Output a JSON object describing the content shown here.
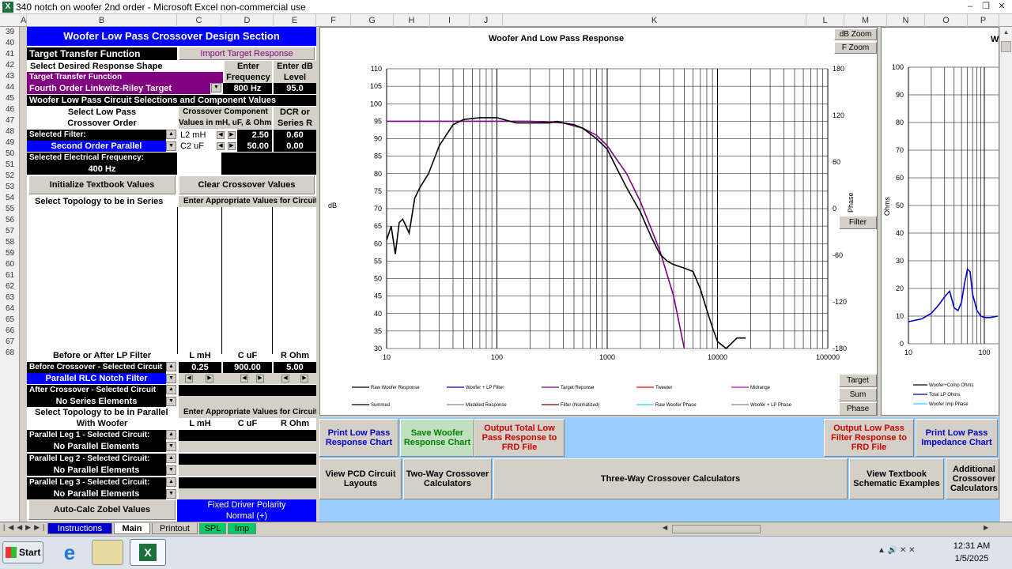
{
  "window": {
    "title": "340 notch on woofer 2nd order - Microsoft Excel non-commercial use"
  },
  "columns": [
    "A",
    "B",
    "C",
    "D",
    "E",
    "F",
    "G",
    "H",
    "I",
    "J",
    "K",
    "L",
    "M",
    "N",
    "O",
    "P"
  ],
  "rows": [
    "39",
    "40",
    "41",
    "42",
    "43",
    "44",
    "45",
    "46",
    "47",
    "48",
    "49",
    "50",
    "51",
    "52",
    "53",
    "54",
    "55",
    "56",
    "57",
    "58",
    "59",
    "60",
    "61",
    "62",
    "63",
    "64",
    "65",
    "66",
    "67",
    "68"
  ],
  "panel": {
    "section_title": "Woofer Low Pass Crossover Design Section",
    "target_transfer_label": "Target Transfer Function",
    "import_button": "Import Target Response",
    "select_shape": "Select Desired Response Shape",
    "enter_freq_hdr1": "Enter",
    "enter_freq_hdr2": "Frequency",
    "enter_db_hdr1": "Enter dB",
    "enter_db_hdr2": "Level",
    "target_tf_label": "Target Transfer Function",
    "target_tf_value": "Fourth Order Linkwitz-Riley Target",
    "freq_value": "800 Hz",
    "db_value": "95.0",
    "circuit_sel_title": "Woofer Low Pass Circuit Selections and Component Values",
    "select_lp1": "Select Low Pass",
    "select_lp2": "Crossover Order",
    "comp_hdr1": "Crossover Component",
    "comp_hdr2": "Values in mH, uF, & Ohms",
    "dcr_hdr1": "DCR or",
    "dcr_hdr2": "Series R",
    "selected_filter_label": "Selected Filter:",
    "selected_filter_value": "Second Order Parallel",
    "l2_label": "L2 mH",
    "l2_value": "2.50",
    "l2_dcr": "0.60",
    "c2_label": "C2  uF",
    "c2_value": "50.00",
    "c2_dcr": "0.00",
    "elec_freq_label": "Selected Electrical Frequency:",
    "elec_freq_value": "400 Hz",
    "init_button": "Initialize Textbook Values",
    "clear_button": "Clear Crossover Values",
    "topology_series": "Select Topology to be in Series",
    "enter_values_hdr": "Enter Appropriate Values for Circuit",
    "before_after": "Before or After LP Filter",
    "col_l": "L mH",
    "col_c": "C uF",
    "col_r": "R Ohm",
    "before_xo_label": "Before Crossover - Selected Circuit",
    "before_l": "0.25",
    "before_c": "900.00",
    "before_r": "5.00",
    "rlc_notch": "Parallel RLC Notch Filter",
    "after_xo_label": "After Crossover - Selected Circuit",
    "no_series": "No Series Elements",
    "topology_parallel": "Select Topology to be in Parallel",
    "enter_values_hdr2": "Enter Appropriate Values for Circuit",
    "with_woofer": "With Woofer",
    "leg1_label": "Parallel Leg 1 - Selected Circuit:",
    "leg2_label": "Parallel Leg 2 - Selected Circuit:",
    "leg3_label": "Parallel Leg 3 - Selected Circuit:",
    "no_parallel": "No Parallel Elements",
    "zobel_button": "Auto-Calc Zobel Values",
    "polarity1": "Fixed Driver Polarity",
    "polarity2": "Normal (+)"
  },
  "chart_main": {
    "title": "Woofer  And Low Pass Response",
    "ylabel": "dB",
    "y2label": "Phase",
    "btn_db_zoom": "dB Zoom",
    "btn_f_zoom": "F Zoom",
    "btn_filter": "Filter",
    "btn_target": "Target",
    "btn_sum": "Sum",
    "btn_phase": "Phase",
    "y_ticks": [
      "110",
      "105",
      "100",
      "95",
      "90",
      "85",
      "80",
      "75",
      "70",
      "65",
      "60",
      "55",
      "50",
      "45",
      "40",
      "35",
      "30"
    ],
    "y2_ticks": [
      "180",
      "120",
      "60",
      "0",
      "-60",
      "-120",
      "-180"
    ],
    "x_ticks": [
      "10",
      "100",
      "1000",
      "10000",
      "100000"
    ],
    "legend": [
      {
        "name": "Raw Woofer Response",
        "color": "#000000"
      },
      {
        "name": "Woofer + LP Filter",
        "color": "#0000cc"
      },
      {
        "name": "Target Reponse",
        "color": "#800080"
      },
      {
        "name": "Tweeter",
        "color": "#ff0000"
      },
      {
        "name": "Midrange",
        "color": "#cc00cc"
      },
      {
        "name": "Summed",
        "color": "#000000"
      },
      {
        "name": "Modeled Response",
        "color": "#808080"
      },
      {
        "name": "Filter (Normalized)",
        "color": "#800000"
      },
      {
        "name": "Raw Woofer Phase",
        "color": "#33ccff"
      },
      {
        "name": "Woofer + LP Phase",
        "color": "#808080"
      }
    ]
  },
  "chart_data": [
    {
      "type": "line",
      "title": "Woofer  And Low Pass Response",
      "xlabel": "",
      "ylabel": "dB",
      "xscale": "log",
      "xlim": [
        10,
        100000
      ],
      "ylim": [
        30,
        110
      ],
      "y2lim": [
        -180,
        180
      ],
      "grid": true,
      "legend_position": "bottom",
      "series": [
        {
          "name": "Target Reponse",
          "color": "#800080",
          "x": [
            10,
            20,
            50,
            100,
            200,
            400,
            600,
            800,
            1000,
            1500,
            2000,
            3000,
            4000,
            5000
          ],
          "y": [
            95,
            95,
            95,
            95,
            95,
            94.5,
            93,
            91,
            88,
            80,
            72,
            58,
            45,
            30
          ]
        },
        {
          "name": "Raw Woofer Response",
          "color": "#000000",
          "x": [
            10,
            11,
            12,
            13,
            14,
            16,
            18,
            20,
            24,
            30,
            40,
            50,
            70,
            100,
            150,
            200,
            300,
            350,
            400,
            500,
            600,
            800,
            1000,
            1200,
            1500,
            2000,
            2500,
            3000,
            3500,
            4000,
            5000,
            6000,
            7000,
            8000,
            9000,
            10000,
            12000,
            15000,
            18000
          ],
          "y": [
            61,
            65,
            57,
            66,
            67,
            63,
            73,
            76,
            80,
            88,
            94,
            95.5,
            96,
            96,
            94.5,
            94.5,
            94.5,
            95,
            94.5,
            94,
            93,
            90,
            87,
            82,
            76,
            69,
            62,
            57,
            55,
            54,
            53,
            52,
            47,
            41,
            36,
            32,
            27,
            33,
            33
          ]
        }
      ]
    },
    {
      "type": "line",
      "title": "",
      "xlabel": "",
      "ylabel": "Ohms",
      "xscale": "log",
      "ylim": [
        0,
        100
      ],
      "grid": true,
      "legend_position": "bottom",
      "series": [
        {
          "name": "Woofer+Comp Ohms",
          "color": "#0000cc",
          "x": [
            10,
            15,
            20,
            25,
            30,
            35,
            40,
            45,
            50,
            55,
            60,
            65,
            70,
            80,
            90,
            100,
            120,
            150
          ],
          "y": [
            8,
            9,
            11,
            14,
            17,
            19,
            13,
            12,
            15,
            22,
            27,
            26,
            18,
            12,
            10,
            9.5,
            9.5,
            10
          ]
        }
      ]
    }
  ],
  "chart_imp": {
    "ylabel": "Ohms",
    "y_ticks": [
      "100",
      "90",
      "80",
      "70",
      "60",
      "50",
      "40",
      "30",
      "20",
      "10",
      "0"
    ],
    "x_ticks": [
      "10",
      "100"
    ],
    "title_partial": "W",
    "legend": [
      {
        "name": "Woofer+Comp Ohms",
        "color": "#000000"
      },
      {
        "name": "Total LP Ohms",
        "color": "#000080"
      },
      {
        "name": "Woofer Imp Phase",
        "color": "#33ccff"
      }
    ]
  },
  "buttons": {
    "print_lp": "Print Low Pass Response Chart",
    "save_woofer": "Save Woofer Response Chart",
    "output_total": "Output Total  Low Pass Response to FRD File",
    "output_filter": "Output Low Pass Filter Response to FRD File",
    "print_imp": "Print Low Pass Impedance Chart",
    "view_pcd": "View PCD Circuit Layouts",
    "two_way": "Two-Way Crossover Calculators",
    "three_way": "Three-Way Crossover Calculators",
    "view_textbook": "View Textbook Schematic Examples",
    "additional": "Additional Crossover Calculators"
  },
  "tabs": [
    {
      "label": "Instructions",
      "color": "#0000cc",
      "text": "#ffffff"
    },
    {
      "label": "Main",
      "color": "#ffffff",
      "text": "#000000"
    },
    {
      "label": "Printout",
      "color": "#d4d0c8",
      "text": "#000000"
    },
    {
      "label": "SPL",
      "color": "#00cc66",
      "text": "#000000"
    },
    {
      "label": "Imp",
      "color": "#00cc66",
      "text": "#000000"
    }
  ],
  "taskbar": {
    "start": "Start",
    "time": "12:31 AM",
    "date": "1/5/2025"
  }
}
